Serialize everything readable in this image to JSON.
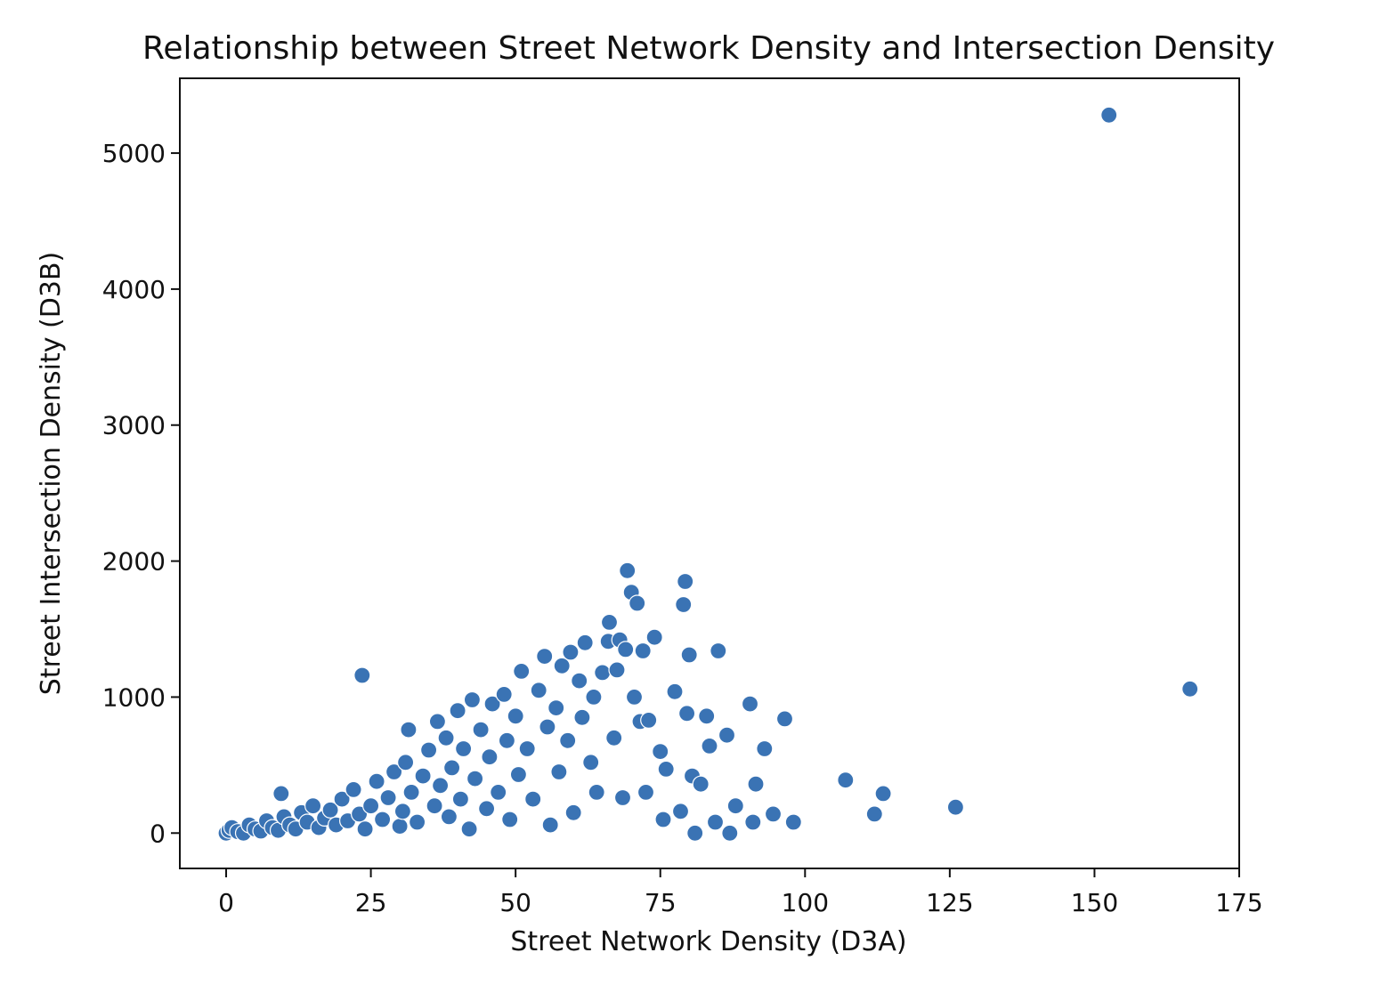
{
  "chart_data": {
    "type": "scatter",
    "title": "Relationship between Street Network Density and Intersection Density",
    "xlabel": "Street Network Density (D3A)",
    "ylabel": "Street Intersection Density (D3B)",
    "xlim": [
      -8,
      175
    ],
    "ylim": [
      -260,
      5550
    ],
    "xticks": [
      0,
      25,
      50,
      75,
      100,
      125,
      150,
      175
    ],
    "yticks": [
      0,
      1000,
      2000,
      3000,
      4000,
      5000
    ],
    "xtick_labels": [
      "0",
      "25",
      "50",
      "75",
      "100",
      "125",
      "150",
      "175"
    ],
    "ytick_labels": [
      "0",
      "1000",
      "2000",
      "3000",
      "4000",
      "5000"
    ],
    "grid": false,
    "legend": "none",
    "marker_color": "#3a73b4",
    "series": [
      {
        "points": [
          [
            0,
            0
          ],
          [
            0.5,
            20
          ],
          [
            1,
            40
          ],
          [
            2,
            10
          ],
          [
            3,
            0
          ],
          [
            4,
            60
          ],
          [
            5,
            30
          ],
          [
            6,
            15
          ],
          [
            7,
            90
          ],
          [
            8,
            40
          ],
          [
            9,
            20
          ],
          [
            9.5,
            290
          ],
          [
            10,
            120
          ],
          [
            11,
            60
          ],
          [
            12,
            30
          ],
          [
            13,
            150
          ],
          [
            14,
            80
          ],
          [
            15,
            200
          ],
          [
            16,
            40
          ],
          [
            17,
            110
          ],
          [
            18,
            170
          ],
          [
            19,
            60
          ],
          [
            20,
            250
          ],
          [
            21,
            90
          ],
          [
            22,
            320
          ],
          [
            23,
            140
          ],
          [
            23.5,
            1160
          ],
          [
            24,
            30
          ],
          [
            25,
            200
          ],
          [
            26,
            380
          ],
          [
            27,
            100
          ],
          [
            28,
            260
          ],
          [
            29,
            450
          ],
          [
            30,
            50
          ],
          [
            30.5,
            160
          ],
          [
            31,
            520
          ],
          [
            31.5,
            760
          ],
          [
            32,
            300
          ],
          [
            33,
            80
          ],
          [
            34,
            420
          ],
          [
            35,
            610
          ],
          [
            36,
            200
          ],
          [
            36.5,
            820
          ],
          [
            37,
            350
          ],
          [
            38,
            700
          ],
          [
            38.5,
            120
          ],
          [
            39,
            480
          ],
          [
            40,
            900
          ],
          [
            40.5,
            250
          ],
          [
            41,
            620
          ],
          [
            42,
            30
          ],
          [
            42.5,
            980
          ],
          [
            43,
            400
          ],
          [
            44,
            760
          ],
          [
            45,
            180
          ],
          [
            45.5,
            560
          ],
          [
            46,
            950
          ],
          [
            47,
            300
          ],
          [
            48,
            1020
          ],
          [
            48.5,
            680
          ],
          [
            49,
            100
          ],
          [
            50,
            860
          ],
          [
            50.5,
            430
          ],
          [
            51,
            1190
          ],
          [
            52,
            620
          ],
          [
            53,
            250
          ],
          [
            54,
            1050
          ],
          [
            55,
            1300
          ],
          [
            55.5,
            780
          ],
          [
            56,
            60
          ],
          [
            57,
            920
          ],
          [
            57.5,
            450
          ],
          [
            58,
            1230
          ],
          [
            59,
            680
          ],
          [
            59.5,
            1330
          ],
          [
            60,
            150
          ],
          [
            61,
            1120
          ],
          [
            61.5,
            850
          ],
          [
            62,
            1400
          ],
          [
            63,
            520
          ],
          [
            63.5,
            1000
          ],
          [
            64,
            300
          ],
          [
            65,
            1180
          ],
          [
            66,
            1410
          ],
          [
            66.2,
            1550
          ],
          [
            67,
            700
          ],
          [
            67.5,
            1200
          ],
          [
            68,
            1420
          ],
          [
            68.5,
            260
          ],
          [
            69,
            1350
          ],
          [
            69.3,
            1930
          ],
          [
            70,
            1770
          ],
          [
            70.5,
            1000
          ],
          [
            71,
            1690
          ],
          [
            71.5,
            820
          ],
          [
            72,
            1340
          ],
          [
            72.5,
            300
          ],
          [
            73,
            830
          ],
          [
            74,
            1440
          ],
          [
            75,
            600
          ],
          [
            75.5,
            100
          ],
          [
            76,
            470
          ],
          [
            77.5,
            1040
          ],
          [
            78.5,
            160
          ],
          [
            79,
            1680
          ],
          [
            79.3,
            1850
          ],
          [
            79.6,
            880
          ],
          [
            80,
            1310
          ],
          [
            80.5,
            420
          ],
          [
            81,
            0
          ],
          [
            82,
            360
          ],
          [
            83,
            860
          ],
          [
            83.5,
            640
          ],
          [
            84.5,
            80
          ],
          [
            85,
            1340
          ],
          [
            86.5,
            720
          ],
          [
            87,
            0
          ],
          [
            88,
            200
          ],
          [
            90.5,
            950
          ],
          [
            91,
            80
          ],
          [
            91.5,
            360
          ],
          [
            93,
            620
          ],
          [
            94.5,
            140
          ],
          [
            96.5,
            840
          ],
          [
            98,
            80
          ],
          [
            107,
            390
          ],
          [
            112,
            140
          ],
          [
            113.5,
            290
          ],
          [
            126,
            190
          ],
          [
            152.5,
            5280
          ],
          [
            166.5,
            1060
          ]
        ]
      }
    ]
  }
}
